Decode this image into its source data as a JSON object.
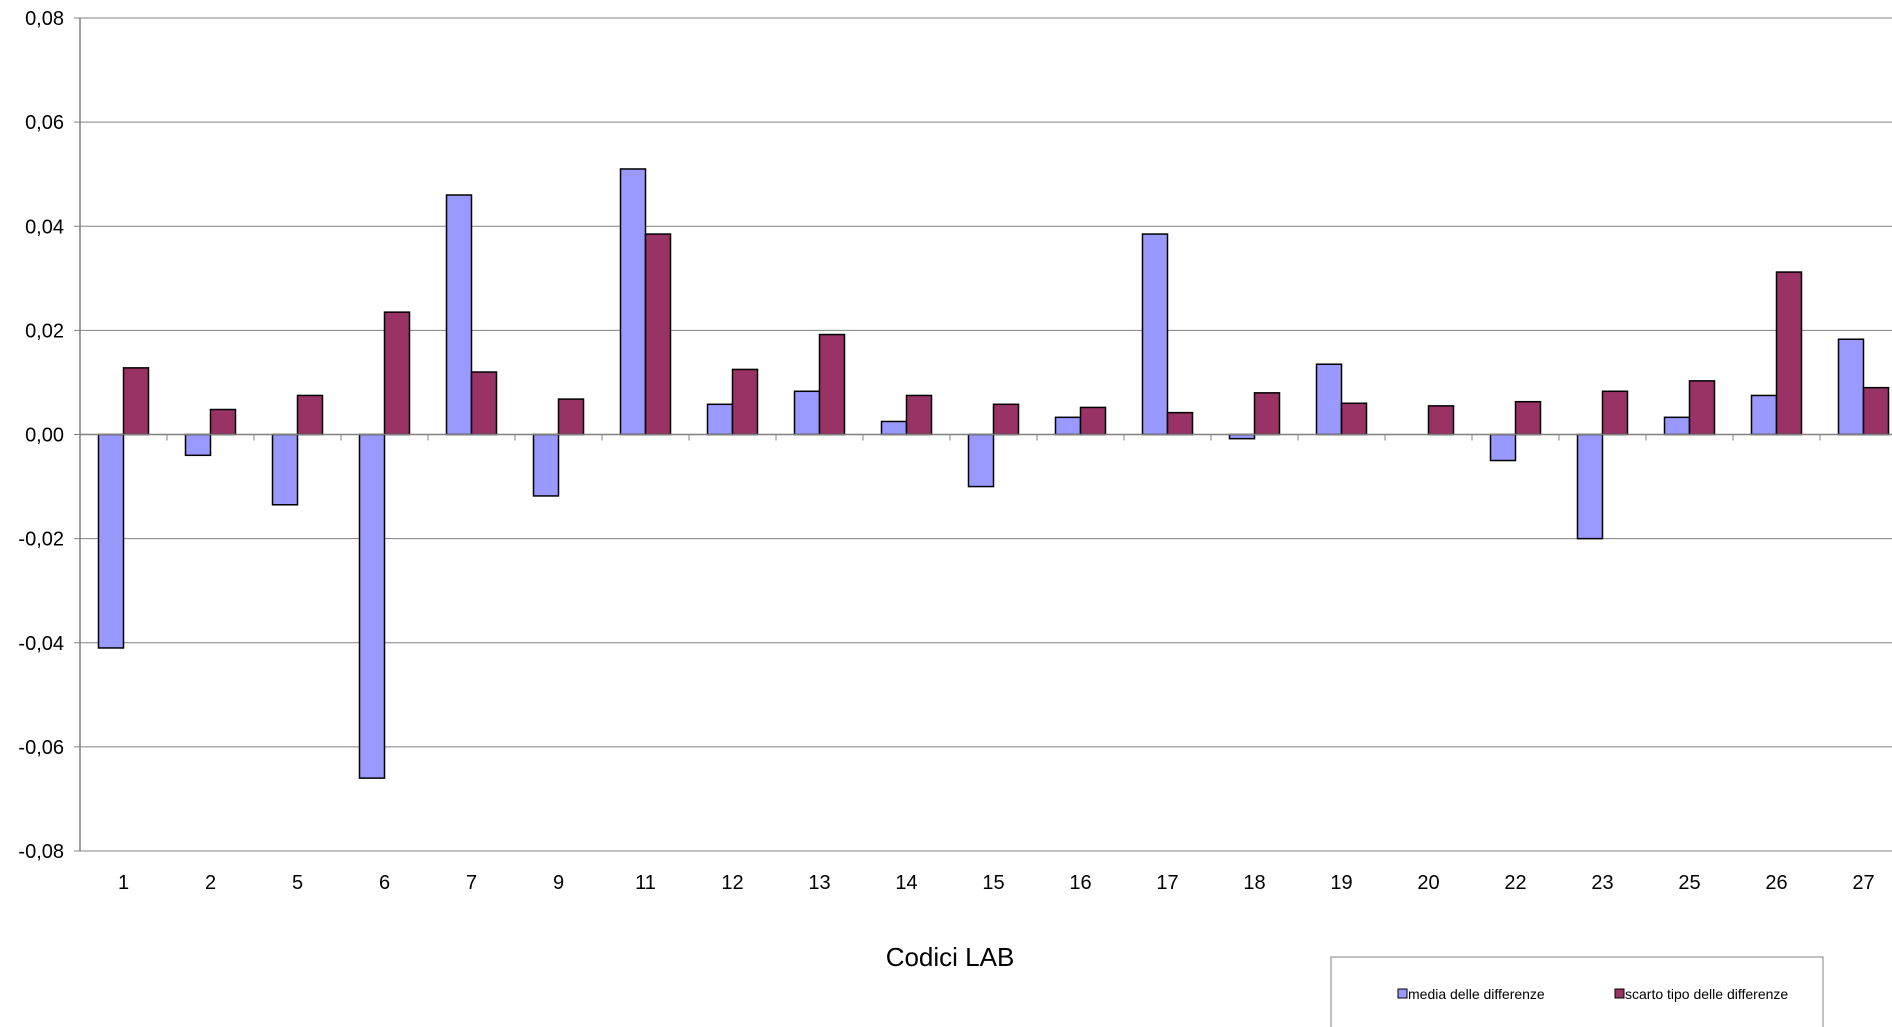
{
  "chart_data": {
    "type": "bar",
    "title": "",
    "xlabel": "Codici LAB",
    "ylabel": "",
    "ylim": [
      -0.08,
      0.08
    ],
    "ytick_step": 0.02,
    "ytick_labels": [
      "0,08",
      "0,06",
      "0,04",
      "0,02",
      "0,00",
      "-0,02",
      "-0,04",
      "-0,06",
      "-0,08"
    ],
    "grid": true,
    "legend_position": "bottom-right",
    "categories": [
      "1",
      "2",
      "5",
      "6",
      "7",
      "9",
      "11",
      "12",
      "13",
      "14",
      "15",
      "16",
      "17",
      "18",
      "19",
      "20",
      "22",
      "23",
      "25",
      "26",
      "27"
    ],
    "series": [
      {
        "name": "media delle differenze",
        "color": "#9999ff",
        "values": [
          -0.041,
          -0.004,
          -0.0135,
          -0.066,
          0.046,
          -0.0118,
          0.051,
          0.0058,
          0.0083,
          0.0025,
          -0.01,
          0.0033,
          0.0385,
          -0.0008,
          0.0135,
          0.0,
          -0.005,
          -0.02,
          0.0033,
          0.0075,
          0.0183
        ]
      },
      {
        "name": "scarto tipo delle differenze",
        "color": "#993366",
        "values": [
          0.0128,
          0.0048,
          0.0075,
          0.0235,
          0.012,
          0.0068,
          0.0385,
          0.0125,
          0.0192,
          0.0075,
          0.0058,
          0.0052,
          0.0042,
          0.008,
          0.006,
          0.0055,
          0.0063,
          0.0083,
          0.0103,
          0.0312,
          0.009
        ]
      }
    ]
  }
}
